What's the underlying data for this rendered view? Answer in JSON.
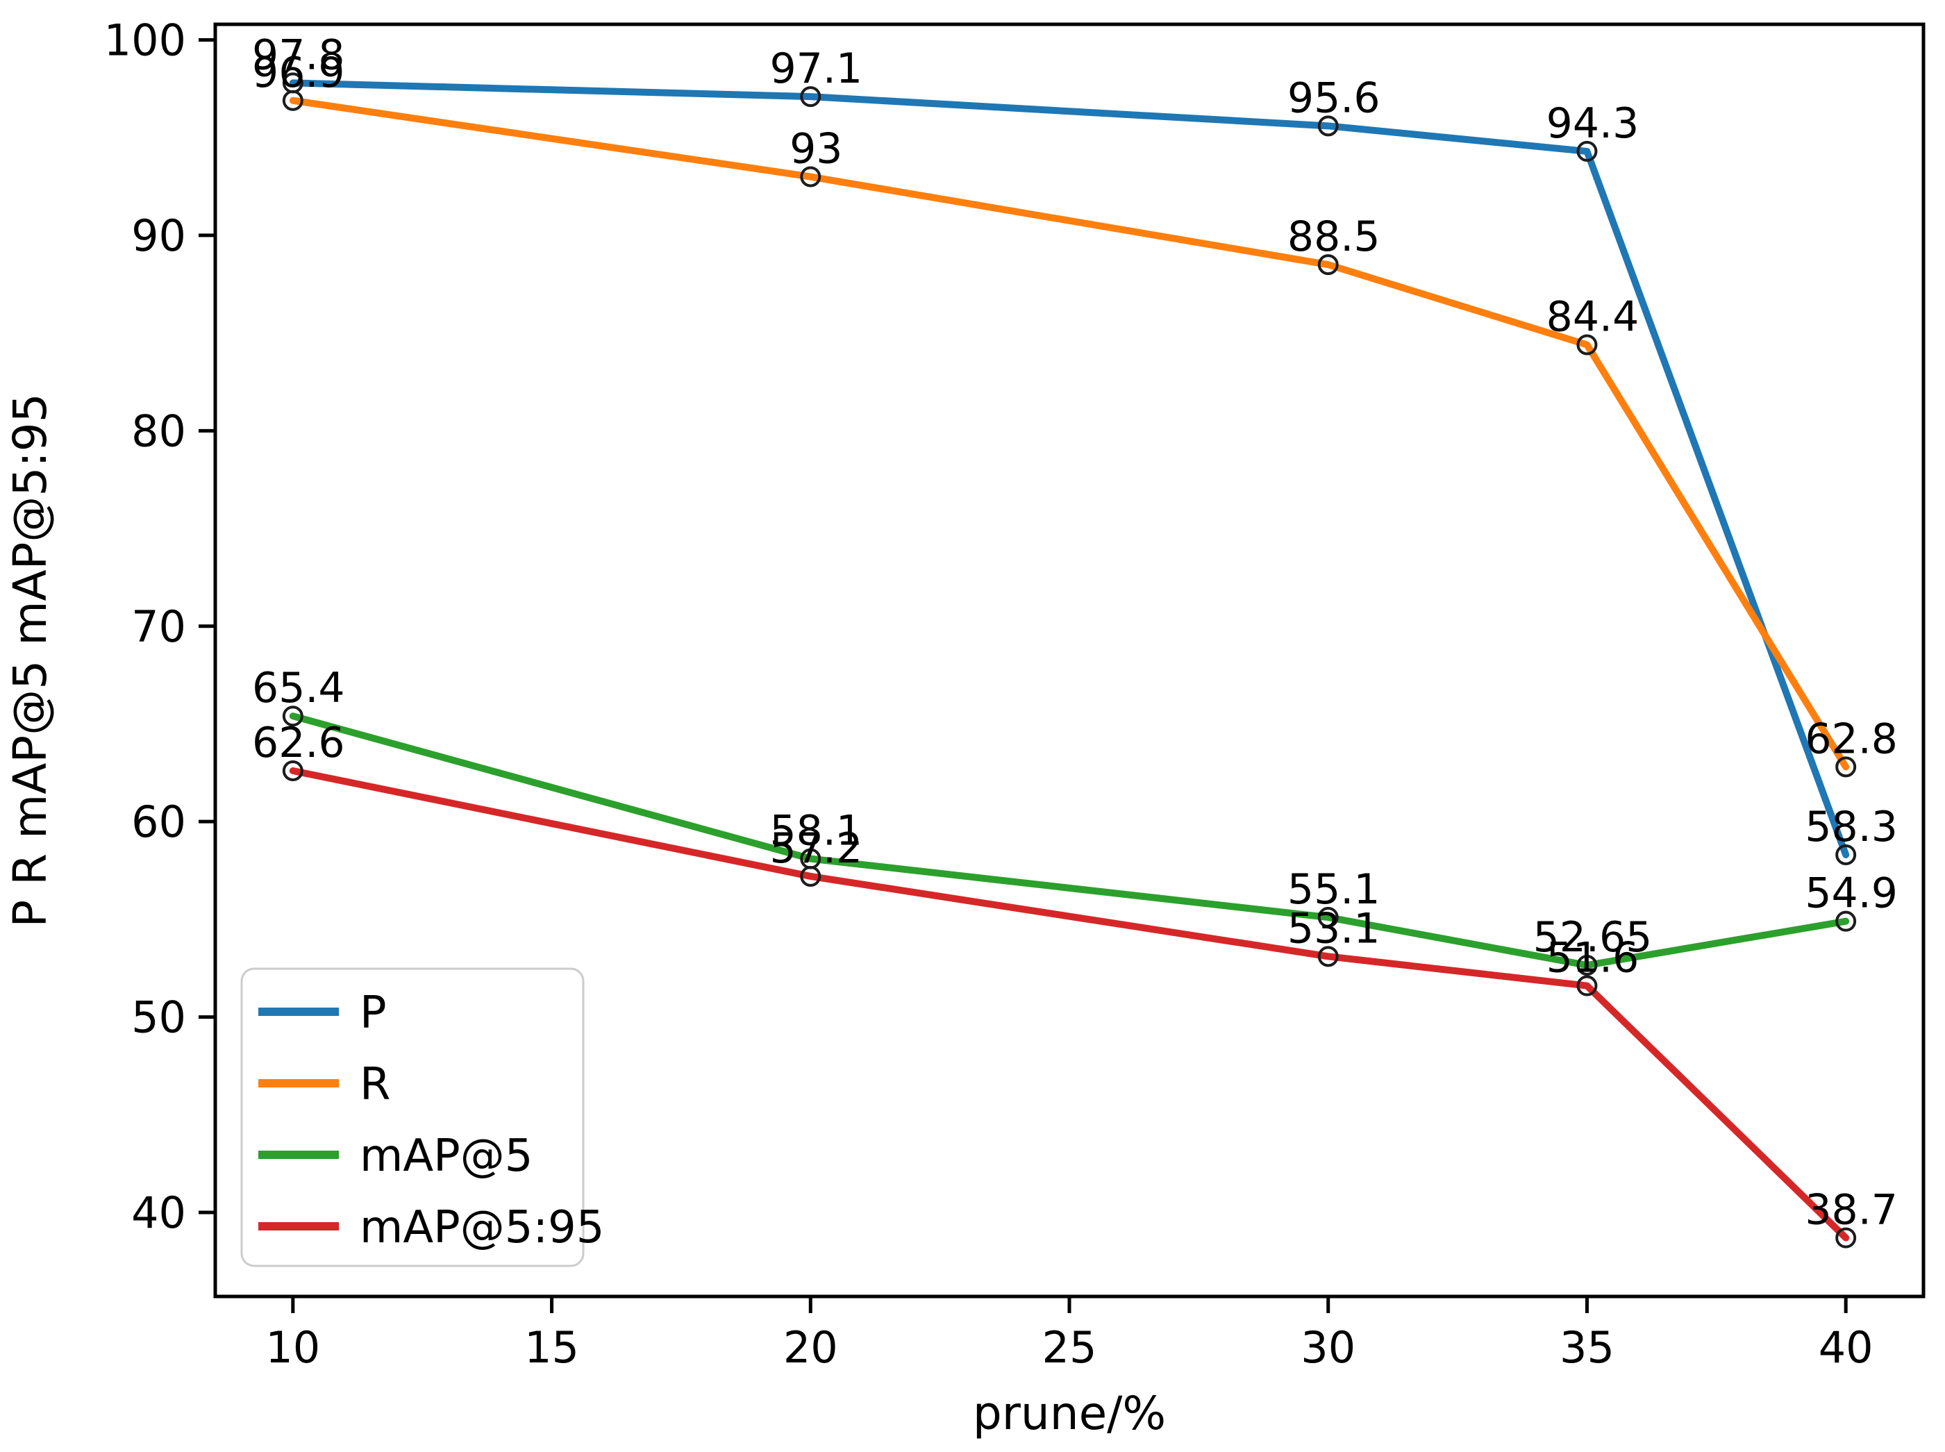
{
  "figure": {
    "background_color": "#ffffff",
    "spine_color": "#000000",
    "tick_color": "#000000",
    "text_color": "#000000",
    "marker_edge_color": "#1c1c1c",
    "legend_border_color": "#cccccc",
    "legend_fill_color": "#ffffff"
  },
  "chart_data": {
    "type": "line",
    "title": "",
    "xlabel": "prune/%",
    "ylabel": "P R mAP@5 mAP@5:95",
    "x": [
      10,
      20,
      30,
      35,
      40
    ],
    "xticks": [
      10,
      15,
      20,
      25,
      30,
      35,
      40
    ],
    "yticks": [
      40,
      50,
      60,
      70,
      80,
      90,
      100
    ],
    "xlim": [
      8.5,
      41.5
    ],
    "ylim": [
      35.7,
      100.8
    ],
    "grid": false,
    "marker": "open-circle",
    "legend": {
      "position": "lower-left",
      "entries": [
        "P",
        "R",
        "mAP@5",
        "mAP@5:95"
      ]
    },
    "series": [
      {
        "name": "P",
        "color": "#1f77b4",
        "values": [
          97.8,
          97.1,
          95.6,
          94.3,
          58.3
        ],
        "point_labels": [
          "97.8",
          "97.1",
          "95.6",
          "94.3",
          "58.3"
        ]
      },
      {
        "name": "R",
        "color": "#ff7f0e",
        "values": [
          96.9,
          93,
          88.5,
          84.4,
          62.8
        ],
        "point_labels": [
          "96.9",
          "93",
          "88.5",
          "84.4",
          "62.8"
        ]
      },
      {
        "name": "mAP@5",
        "color": "#2ca02c",
        "values": [
          65.4,
          58.1,
          55.1,
          52.65,
          54.9
        ],
        "point_labels": [
          "65.4",
          "58.1",
          "55.1",
          "52.65",
          "54.9"
        ]
      },
      {
        "name": "mAP@5:95",
        "color": "#d62728",
        "values": [
          62.6,
          57.2,
          53.1,
          51.6,
          38.7
        ],
        "point_labels": [
          "62.6",
          "57.2",
          "53.1",
          "51.6",
          "38.7"
        ]
      }
    ]
  }
}
